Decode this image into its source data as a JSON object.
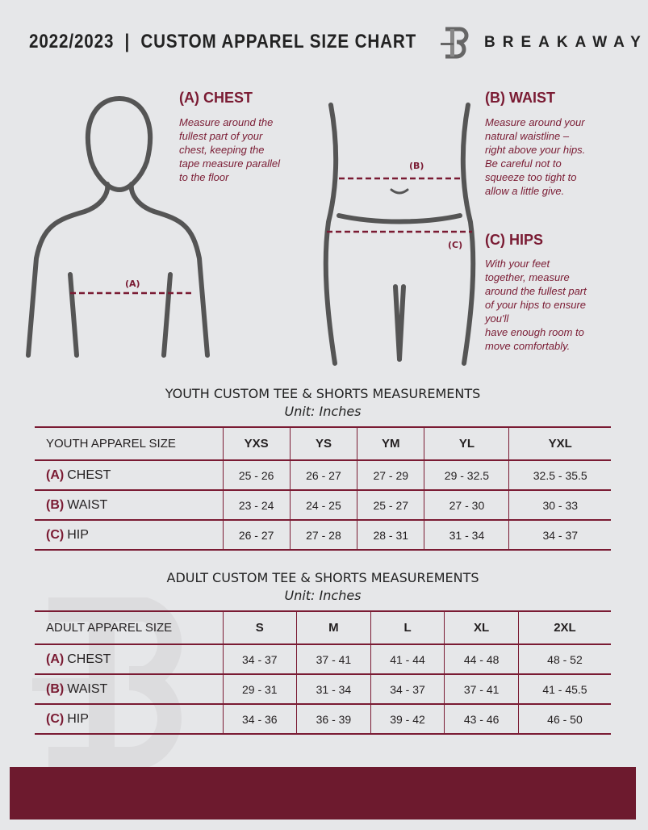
{
  "header": {
    "title": "2022/2023  |  CUSTOM APPAREL SIZE CHART",
    "brand": "BREAKAWAY",
    "logo_letter": "B"
  },
  "chest": {
    "heading": "(A) CHEST",
    "description": [
      "Measure around the",
      "fullest part of your",
      "chest, keeping the",
      "tape measure parallel",
      "to the floor"
    ],
    "marker": "(A)"
  },
  "waist": {
    "heading": "(B) WAIST",
    "description": [
      "Measure around your",
      "natural waistline –",
      "right above your hips.",
      "Be careful not to",
      "squeeze too tight to",
      "allow a little give."
    ],
    "marker": "(B)"
  },
  "hips": {
    "heading": "(C) HIPS",
    "description": [
      "With your feet",
      "together, measure",
      "around the fullest part",
      "of your hips to ensure",
      "you'll",
      "have enough room to",
      "move comfortably."
    ],
    "marker": "(C)"
  },
  "youth": {
    "title": "YOUTH CUSTOM TEE & SHORTS MEASUREMENTS",
    "unit": "Unit: Inches",
    "header": "YOUTH APPAREL SIZE",
    "sizes": [
      "YXS",
      "YS",
      "YM",
      "YL",
      "YXL"
    ],
    "rows": [
      {
        "letter": "(A)",
        "label": "CHEST",
        "values": [
          "25 - 26",
          "26 - 27",
          "27 - 29",
          "29 - 32.5",
          "32.5 - 35.5"
        ]
      },
      {
        "letter": "(B)",
        "label": "WAIST",
        "values": [
          "23 - 24",
          "24 - 25",
          "25 - 27",
          "27 - 30",
          "30 - 33"
        ]
      },
      {
        "letter": "(C)",
        "label": "HIP",
        "values": [
          "26 - 27",
          "27 - 28",
          "28 - 31",
          "31 - 34",
          "34 - 37"
        ]
      }
    ]
  },
  "adult": {
    "title": "ADULT CUSTOM TEE & SHORTS MEASUREMENTS",
    "unit": "Unit: Inches",
    "header": "ADULT APPAREL SIZE",
    "sizes": [
      "S",
      "M",
      "L",
      "XL",
      "2XL"
    ],
    "rows": [
      {
        "letter": "(A)",
        "label": "CHEST",
        "values": [
          "34 - 37",
          "37 - 41",
          "41 - 44",
          "44 - 48",
          "48 - 52"
        ]
      },
      {
        "letter": "(B)",
        "label": "WAIST",
        "values": [
          "29 - 31",
          "31 - 34",
          "34 - 37",
          "37 - 41",
          "41 - 45.5"
        ]
      },
      {
        "letter": "(C)",
        "label": "HIP",
        "values": [
          "34 - 36",
          "36 - 39",
          "39 - 42",
          "43 - 46",
          "46 - 50"
        ]
      }
    ]
  },
  "colors": {
    "accent": "#7a1b33",
    "footer": "#6d1a2e",
    "background": "#e6e7e9"
  }
}
